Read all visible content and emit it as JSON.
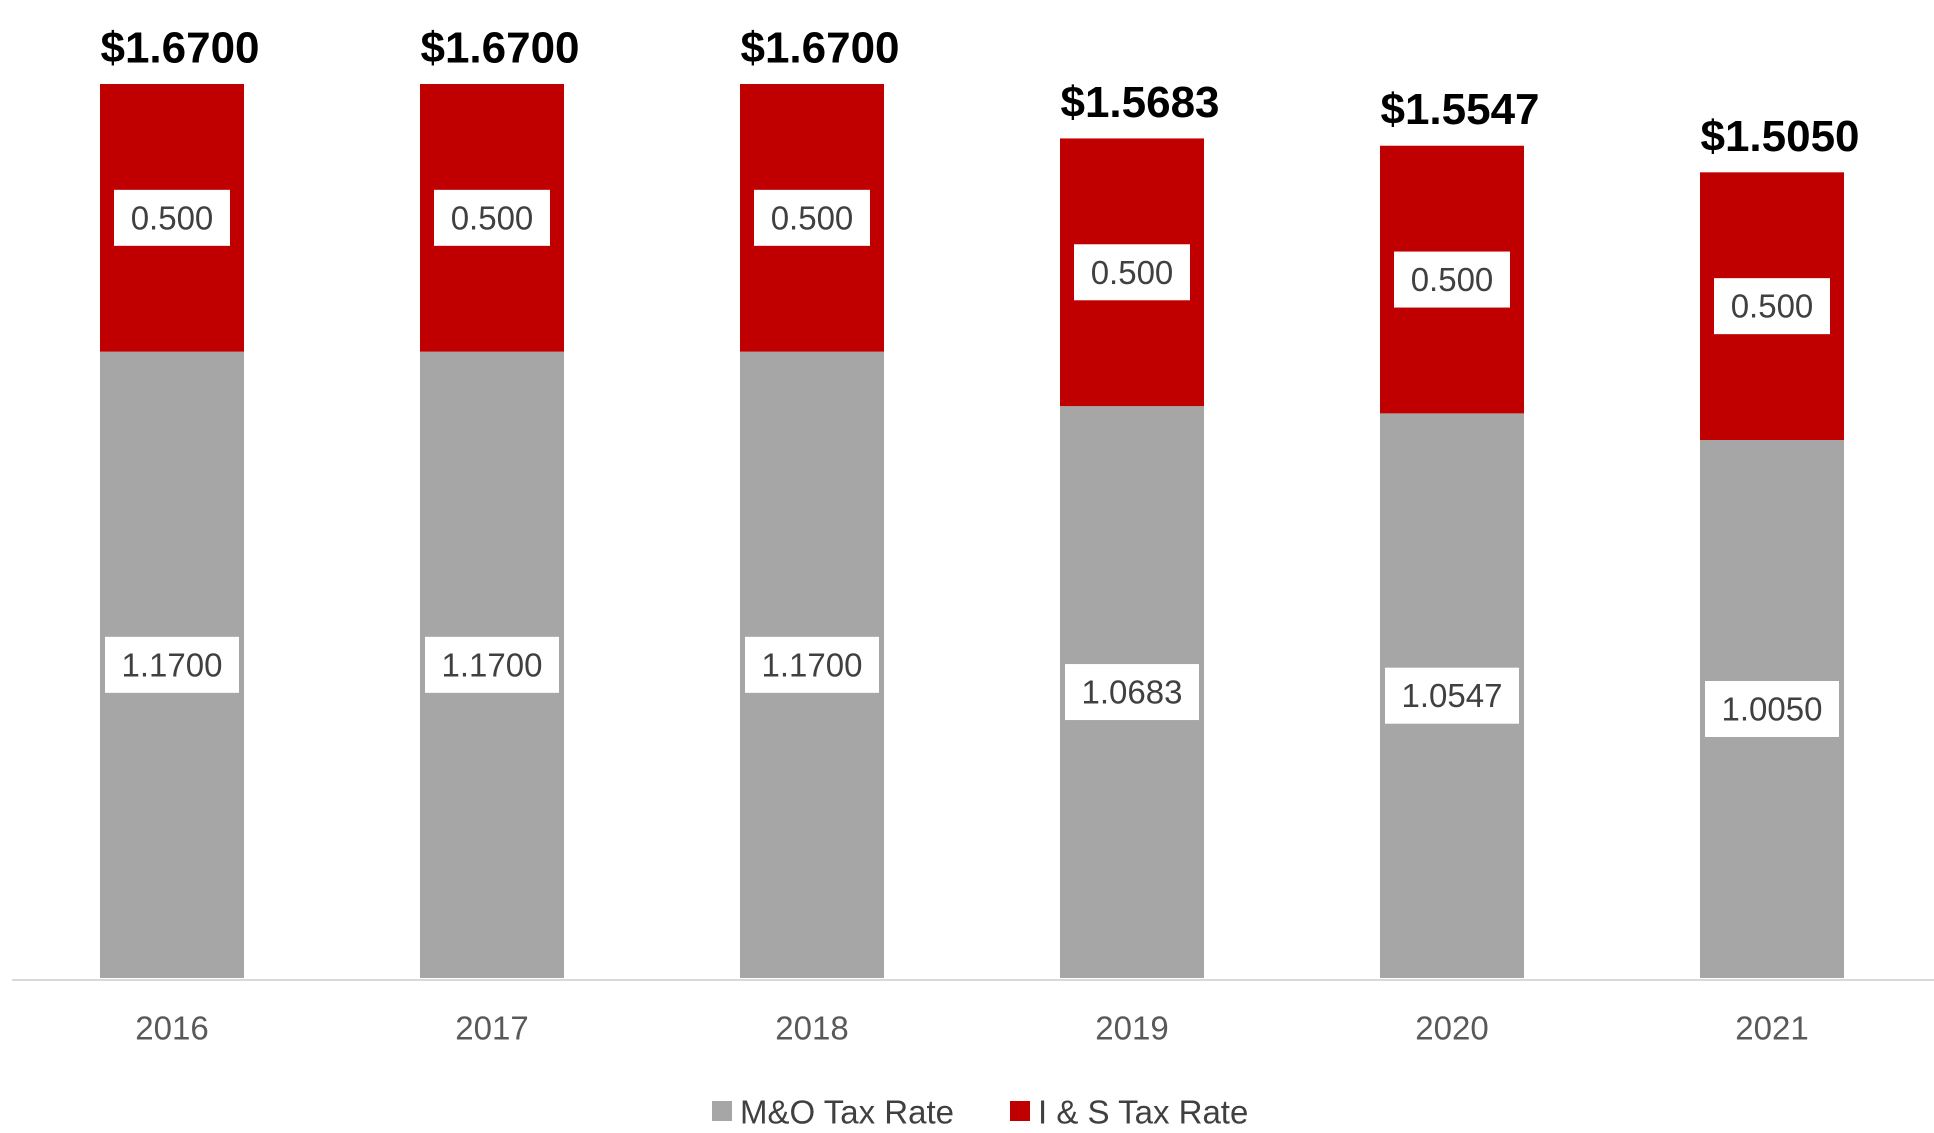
{
  "chart_data": {
    "type": "bar",
    "stacked": true,
    "categories": [
      "2016",
      "2017",
      "2018",
      "2019",
      "2020",
      "2021"
    ],
    "series": [
      {
        "name": "M&O Tax Rate",
        "color": "#a6a6a6",
        "values": [
          1.17,
          1.17,
          1.17,
          1.0683,
          1.0547,
          1.005
        ],
        "labels": [
          "1.1700",
          "1.1700",
          "1.1700",
          "1.0683",
          "1.0547",
          "1.0050"
        ]
      },
      {
        "name": "I & S Tax Rate",
        "color": "#c00000",
        "values": [
          0.5,
          0.5,
          0.5,
          0.5,
          0.5,
          0.5
        ],
        "labels": [
          "0.500",
          "0.500",
          "0.500",
          "0.500",
          "0.500",
          "0.500"
        ]
      }
    ],
    "totals": [
      "$1.6700",
      "$1.6700",
      "$1.6700",
      "$1.5683",
      "$1.5547",
      "$1.5050"
    ],
    "ylim": [
      0,
      1.67
    ],
    "grid": false,
    "legend_position": "bottom"
  }
}
